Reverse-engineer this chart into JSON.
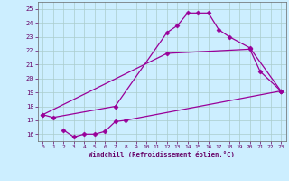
{
  "xlabel": "Windchill (Refroidissement éolien,°C)",
  "background_color": "#cceeff",
  "line_color": "#990099",
  "grid_color": "#aacccc",
  "xlim": [
    -0.5,
    23.5
  ],
  "ylim": [
    15.5,
    25.5
  ],
  "xticks": [
    0,
    1,
    2,
    3,
    4,
    5,
    6,
    7,
    8,
    9,
    10,
    11,
    12,
    13,
    14,
    15,
    16,
    17,
    18,
    19,
    20,
    21,
    22,
    23
  ],
  "yticks": [
    16,
    17,
    18,
    19,
    20,
    21,
    22,
    23,
    24,
    25
  ],
  "curve1_x": [
    0,
    1,
    7,
    12,
    13,
    14,
    15,
    16,
    17,
    18,
    20,
    23
  ],
  "curve1_y": [
    17.4,
    17.2,
    18.0,
    23.3,
    23.8,
    24.7,
    24.7,
    24.7,
    23.5,
    23.0,
    22.2,
    19.1
  ],
  "curve2_x": [
    0,
    12,
    20,
    21,
    23
  ],
  "curve2_y": [
    17.4,
    21.8,
    22.1,
    20.5,
    19.1
  ],
  "curve3_x": [
    2,
    3,
    4,
    5,
    6,
    7,
    8,
    23
  ],
  "curve3_y": [
    16.3,
    15.8,
    16.0,
    16.0,
    16.2,
    16.9,
    17.0,
    19.1
  ]
}
